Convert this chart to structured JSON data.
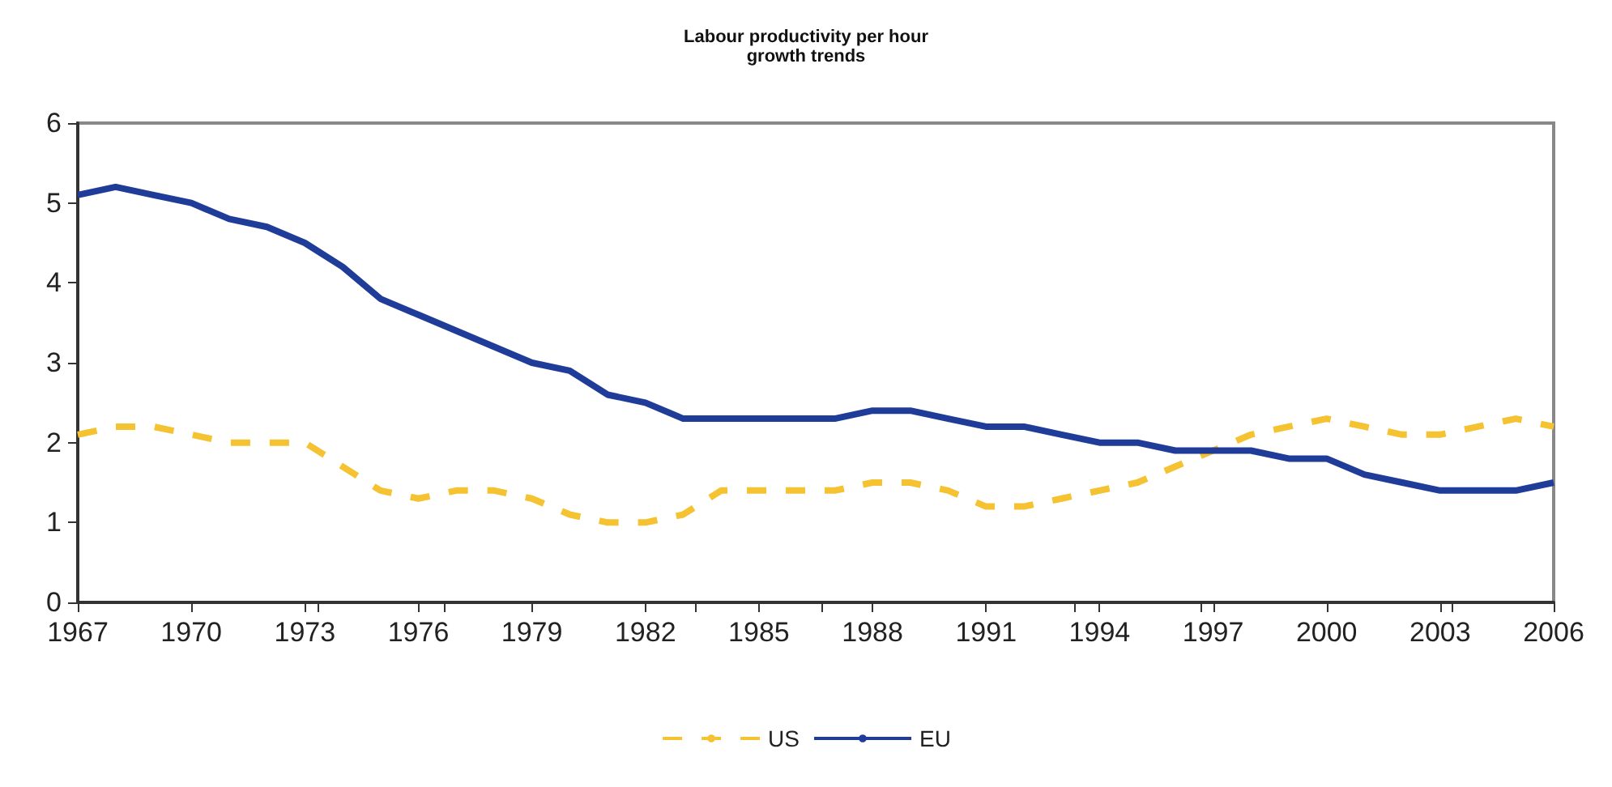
{
  "chart_data": {
    "type": "line",
    "title": "Labour productivity per hour\ngrowth trends",
    "x": [
      1967,
      1968,
      1969,
      1970,
      1971,
      1972,
      1973,
      1974,
      1975,
      1976,
      1977,
      1978,
      1979,
      1980,
      1981,
      1982,
      1983,
      1984,
      1985,
      1986,
      1987,
      1988,
      1989,
      1990,
      1991,
      1992,
      1993,
      1994,
      1995,
      1996,
      1997,
      1998,
      1999,
      2000,
      2001,
      2002,
      2003,
      2004,
      2005,
      2006
    ],
    "series": [
      {
        "name": "US",
        "color": "#f5c232",
        "line_style": "dashed",
        "values": [
          2.1,
          2.2,
          2.2,
          2.1,
          2.0,
          2.0,
          2.0,
          1.7,
          1.4,
          1.3,
          1.4,
          1.4,
          1.3,
          1.1,
          1.0,
          1.0,
          1.1,
          1.4,
          1.4,
          1.4,
          1.4,
          1.5,
          1.5,
          1.4,
          1.2,
          1.2,
          1.3,
          1.4,
          1.5,
          1.7,
          1.9,
          2.1,
          2.2,
          2.3,
          2.2,
          2.1,
          2.1,
          2.2,
          2.3,
          2.2
        ]
      },
      {
        "name": "EU",
        "color": "#1f3c98",
        "line_style": "solid",
        "values": [
          5.1,
          5.2,
          5.1,
          5.0,
          4.8,
          4.7,
          4.5,
          4.2,
          3.8,
          3.6,
          3.4,
          3.2,
          3.0,
          2.9,
          2.6,
          2.5,
          2.3,
          2.3,
          2.3,
          2.3,
          2.3,
          2.4,
          2.4,
          2.3,
          2.2,
          2.2,
          2.1,
          2.0,
          2.0,
          1.9,
          1.9,
          1.9,
          1.8,
          1.8,
          1.6,
          1.5,
          1.4,
          1.4,
          1.4,
          1.5
        ]
      }
    ],
    "xlim": [
      1967,
      2006
    ],
    "xticks": [
      1967,
      1970,
      1973,
      1976,
      1979,
      1982,
      1985,
      1988,
      1991,
      1994,
      1997,
      2000,
      2003,
      2006
    ],
    "ylim": [
      0,
      6
    ],
    "yticks": [
      0,
      1,
      2,
      3,
      4,
      5,
      6
    ],
    "grid": false,
    "legend": "bottom",
    "marker": "none"
  }
}
